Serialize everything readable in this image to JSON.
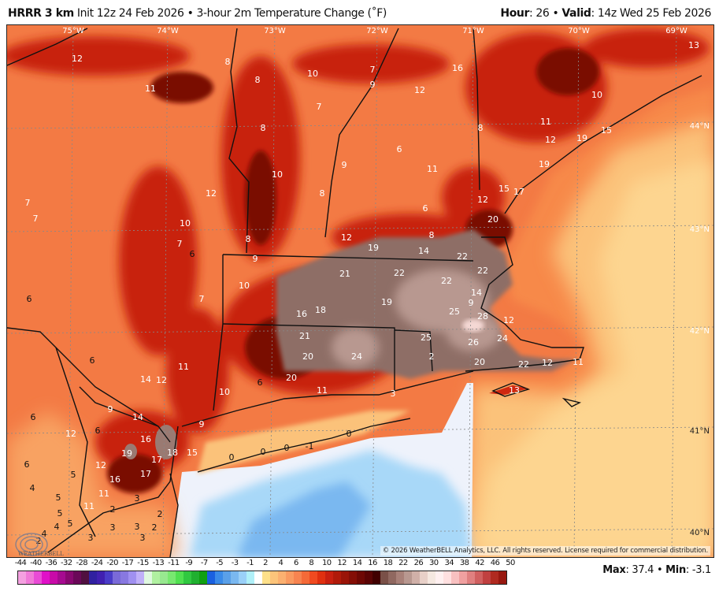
{
  "header": {
    "model": "HRRR 3 km",
    "init": "Init 12z 24 Feb 2026",
    "separator": "•",
    "product": "3-hour 2m Temperature Change (˚F)",
    "hour_label": "Hour",
    "hour_value": ": 26",
    "valid_label": "Valid",
    "valid_value": ": 14z Wed 25 Feb 2026"
  },
  "map": {
    "longitude_labels": [
      "75°W",
      "74°W",
      "73°W",
      "72°W",
      "71°W",
      "70°W",
      "69°W"
    ],
    "latitude_labels": [
      "44°N",
      "43°N",
      "42°N",
      "41°N",
      "40°N"
    ],
    "contour_values": [
      "12",
      "11",
      "8",
      "8",
      "10",
      "7",
      "9",
      "16",
      "12",
      "7",
      "8",
      "8",
      "11",
      "10",
      "15",
      "19",
      "12",
      "13",
      "6",
      "9",
      "11",
      "19",
      "10",
      "12",
      "8",
      "15",
      "17",
      "12",
      "6",
      "7",
      "7",
      "10",
      "20",
      "8",
      "8",
      "7",
      "6",
      "12",
      "19",
      "14",
      "22",
      "9",
      "21",
      "22",
      "22",
      "22",
      "10",
      "6",
      "7",
      "19",
      "14",
      "18",
      "16",
      "25",
      "9",
      "28",
      "12",
      "21",
      "25",
      "6",
      "26",
      "24",
      "20",
      "24",
      "2",
      "11",
      "20",
      "22",
      "12",
      "11",
      "14",
      "12",
      "6",
      "20",
      "11",
      "10",
      "3",
      "13",
      "9",
      "14",
      "6",
      "6",
      "12",
      "9",
      "0",
      "19",
      "16",
      "17",
      "18",
      "15",
      "17",
      "0",
      "0",
      "0",
      "-1",
      "12",
      "6",
      "5",
      "16",
      "4",
      "11",
      "11",
      "3",
      "5",
      "5",
      "4",
      "4",
      "5",
      "2",
      "2",
      "2",
      "3",
      "3",
      "3",
      "3",
      "2",
      "3"
    ],
    "copyright": "© 2026 WeatherBELL Analytics, LLC. All rights reserved. License required for commercial distribution.",
    "logo_text": "WEATHERBELL"
  },
  "colorbar": {
    "labels": [
      "-44",
      "-40",
      "-36",
      "-32",
      "-28",
      "-24",
      "-20",
      "-17",
      "-15",
      "-13",
      "-11",
      "-9",
      "-7",
      "-5",
      "-3",
      "-1",
      "2",
      "4",
      "6",
      "8",
      "10",
      "12",
      "14",
      "16",
      "18",
      "22",
      "26",
      "30",
      "34",
      "38",
      "42",
      "46",
      "50"
    ],
    "colors": [
      "#f4a0e0",
      "#f07ad8",
      "#e94bd6",
      "#e010c8",
      "#c80aa8",
      "#a60a90",
      "#880870",
      "#6a0858",
      "#501040",
      "#3020a0",
      "#4020b0",
      "#4a3cc8",
      "#7a6ad8",
      "#8878e0",
      "#a090f0",
      "#c0b0f8",
      "#e0f8e0",
      "#b0f0a0",
      "#98e890",
      "#78e870",
      "#50e050",
      "#30c840",
      "#20b030",
      "#10a010",
      "#1a60e0",
      "#3a8ae8",
      "#5aa0e8",
      "#7ab8f0",
      "#9ad0f8",
      "#b0f0f8",
      "#ffffff",
      "#fde08a",
      "#fcc47a",
      "#fbb070",
      "#f99a60",
      "#f78450",
      "#f56a38",
      "#f04a20",
      "#e03010",
      "#c82010",
      "#b01a0a",
      "#9a1408",
      "#840e06",
      "#6e0804",
      "#5a0404",
      "#400000",
      "#7a5048",
      "#906860",
      "#a88078",
      "#b89890",
      "#d0b0a8",
      "#e8d0c8",
      "#f5e8e0",
      "#fff0f0",
      "#ffe0e0",
      "#f8c0c0",
      "#f0a0a0",
      "#e08080",
      "#d06060",
      "#c04040",
      "#b02a20",
      "#981810"
    ]
  },
  "stats": {
    "max_label": "Max",
    "max_value": ": 37.4",
    "separator": "•",
    "min_label": "Min",
    "min_value": ": -3.1"
  }
}
